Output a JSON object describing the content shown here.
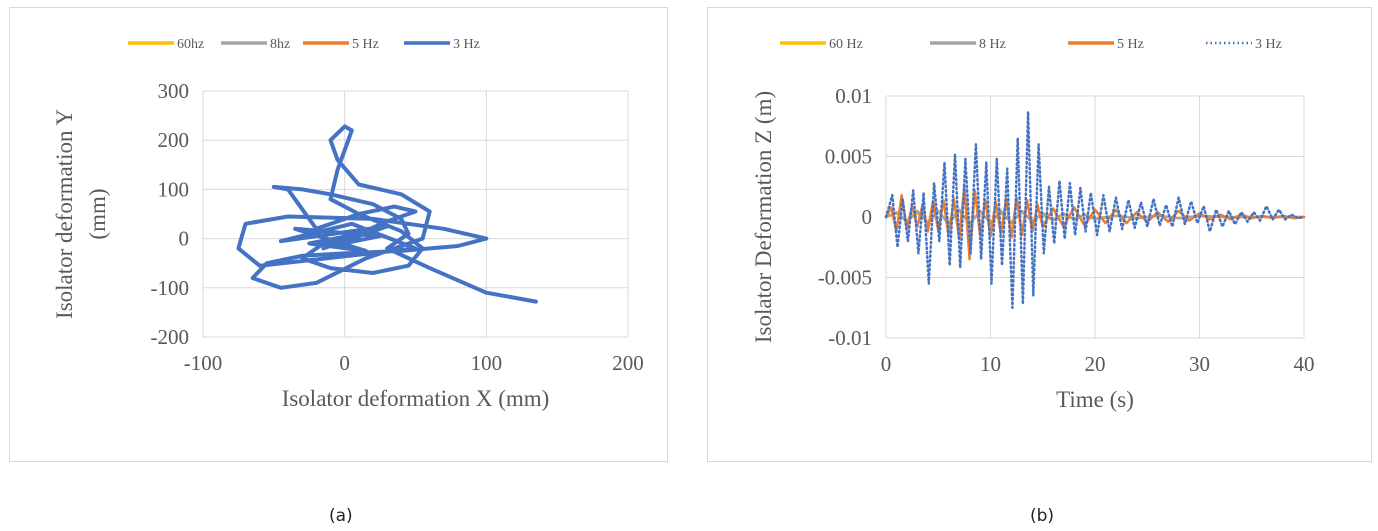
{
  "chart_data": [
    {
      "type": "line",
      "subtype": "xy-scatter-line",
      "caption": "(a)",
      "xlabel": "Isolator deformation X (mm)",
      "ylabel": "Isolator deformation Y (mm)",
      "ylabel_lines": [
        "Isolator deformation Y",
        "(mm)"
      ],
      "xlim": [
        -100,
        200
      ],
      "ylim": [
        -200,
        300
      ],
      "xticks": [
        -100,
        0,
        100,
        200
      ],
      "yticks": [
        -200,
        -100,
        0,
        100,
        200,
        300
      ],
      "xtick_labels": [
        "-100",
        "0",
        "100",
        "200"
      ],
      "ytick_labels": [
        "-200",
        "-100",
        "0",
        "100",
        "200",
        "300"
      ],
      "grid": true,
      "legend_position": "top",
      "series": [
        {
          "name": "60hz",
          "color": "#FFC000",
          "style": "solid",
          "x": [
            0,
            0
          ],
          "y": [
            0,
            0
          ]
        },
        {
          "name": "8hz",
          "color": "#A5A5A5",
          "style": "solid",
          "x": [
            0,
            0
          ],
          "y": [
            0,
            0
          ]
        },
        {
          "name": "5 Hz",
          "color": "#ED7D31",
          "style": "solid",
          "x": [
            0,
            0
          ],
          "y": [
            0,
            0
          ]
        },
        {
          "name": "3 Hz",
          "color": "#4472C4",
          "style": "solid",
          "x": [
            0,
            10,
            -15,
            20,
            -25,
            15,
            -35,
            25,
            -10,
            30,
            -45,
            5,
            50,
            -60,
            -75,
            -70,
            -40,
            20,
            70,
            100,
            80,
            40,
            0,
            -30,
            -55,
            -65,
            -45,
            -20,
            15,
            55,
            60,
            40,
            10,
            -5,
            -10,
            0,
            5,
            -5,
            -10,
            10,
            40,
            55,
            45,
            20,
            -10,
            -30,
            -15,
            10,
            30,
            50,
            35,
            10,
            -20,
            -40,
            -50,
            -30,
            -10,
            20,
            40,
            45,
            30,
            60,
            100,
            135
          ],
          "y": [
            0,
            10,
            -20,
            15,
            -10,
            -25,
            20,
            5,
            -15,
            25,
            -5,
            30,
            -20,
            -55,
            -20,
            30,
            45,
            40,
            20,
            0,
            -15,
            -25,
            -30,
            -35,
            -50,
            -80,
            -100,
            -90,
            -40,
            0,
            55,
            90,
            110,
            160,
            200,
            228,
            220,
            140,
            80,
            50,
            15,
            -20,
            -55,
            -70,
            -60,
            -40,
            -10,
            10,
            35,
            55,
            65,
            50,
            20,
            100,
            105,
            100,
            90,
            70,
            40,
            10,
            -20,
            -60,
            -110,
            -128
          ]
        }
      ]
    },
    {
      "type": "line",
      "caption": "(b)",
      "xlabel": "Time (s)",
      "ylabel": "Isolator Deformation Z (m)",
      "xlim": [
        0,
        40
      ],
      "ylim": [
        -0.01,
        0.01
      ],
      "xticks": [
        0,
        10,
        20,
        30,
        40
      ],
      "yticks": [
        -0.01,
        -0.005,
        0,
        0.005,
        0.01
      ],
      "xtick_labels": [
        "0",
        "10",
        "20",
        "30",
        "40"
      ],
      "ytick_labels": [
        "-0.01",
        "-0.005",
        "0",
        "0.005",
        "0.01"
      ],
      "grid": true,
      "legend_position": "top",
      "series": [
        {
          "name": "60 Hz",
          "color": "#FFC000",
          "style": "solid",
          "x": [
            0,
            1,
            2,
            3,
            4,
            5,
            6,
            7,
            8,
            9,
            10,
            11,
            12,
            13,
            14,
            15,
            16,
            17,
            18,
            19,
            20,
            22,
            24,
            26,
            28,
            30,
            32,
            34,
            36,
            38,
            40
          ],
          "y": [
            0,
            0.0003,
            -0.0003,
            0.0003,
            -0.0004,
            0.0004,
            -0.0004,
            0.0005,
            -0.0005,
            0.0004,
            -0.0004,
            0.0003,
            -0.0004,
            0.0004,
            -0.0003,
            0.0002,
            -0.0002,
            0.0002,
            -0.0002,
            0.0002,
            -0.0001,
            0.0001,
            -0.0001,
            0.0001,
            -0.0001,
            0.0001,
            0,
            0,
            0,
            0,
            0
          ]
        },
        {
          "name": "8 Hz",
          "color": "#A5A5A5",
          "style": "solid",
          "x": [
            0,
            1,
            2,
            3,
            4,
            5,
            6,
            7,
            8,
            9,
            10,
            11,
            12,
            13,
            14,
            15,
            16,
            17,
            18,
            19,
            20,
            22,
            24,
            26,
            28,
            30,
            32,
            34,
            36,
            38,
            40
          ],
          "y": [
            0,
            0.0004,
            -0.0004,
            0.0005,
            -0.0005,
            0.0005,
            -0.0006,
            0.0006,
            -0.0006,
            0.0005,
            -0.0005,
            0.0005,
            -0.0005,
            0.0005,
            -0.0004,
            0.0003,
            -0.0003,
            0.0003,
            -0.0002,
            0.0002,
            -0.0002,
            0.0001,
            -0.0001,
            0.0001,
            -0.0001,
            0.0001,
            0,
            0,
            0,
            0,
            0
          ]
        },
        {
          "name": "5 Hz",
          "color": "#ED7D31",
          "style": "solid",
          "x": [
            0,
            0.5,
            1,
            1.5,
            2,
            2.5,
            3,
            3.5,
            4,
            4.5,
            5,
            5.5,
            6,
            6.5,
            7,
            7.5,
            8,
            8.5,
            9,
            9.5,
            10,
            10.5,
            11,
            11.5,
            12,
            12.5,
            13,
            13.5,
            14,
            14.5,
            15,
            16,
            17,
            18,
            19,
            20,
            21,
            22,
            23,
            24,
            25,
            26,
            27,
            28,
            29,
            30,
            31,
            32,
            33,
            34,
            35,
            36,
            37,
            38,
            39,
            40
          ],
          "y": [
            0,
            0.0008,
            -0.0012,
            0.0018,
            -0.001,
            0.0009,
            -0.0008,
            0.001,
            -0.0012,
            0.0013,
            -0.0011,
            0.0014,
            -0.0016,
            0.0015,
            -0.0018,
            0.0025,
            -0.0035,
            0.0022,
            -0.0015,
            0.0014,
            -0.0016,
            0.0013,
            -0.0014,
            0.0015,
            -0.0017,
            0.0016,
            -0.0015,
            0.0014,
            -0.0012,
            0.001,
            -0.0008,
            0.0007,
            -0.0008,
            0.0008,
            -0.0007,
            0.0006,
            -0.0005,
            0.0006,
            -0.0005,
            0.0004,
            -0.0004,
            0.0004,
            -0.0004,
            0.0005,
            -0.0003,
            0.0003,
            -0.0002,
            0.0002,
            -0.0002,
            0.0002,
            -0.0001,
            0.0001,
            -0.0001,
            0.0001,
            -0.0001,
            0
          ]
        },
        {
          "name": "3 Hz",
          "color": "#4472C4",
          "style": "dotted",
          "x": [
            0,
            0.6,
            1.1,
            1.6,
            2.1,
            2.6,
            3.1,
            3.6,
            4.1,
            4.6,
            5.1,
            5.6,
            6.1,
            6.6,
            7.1,
            7.6,
            8.1,
            8.6,
            9.1,
            9.6,
            10.1,
            10.6,
            11.1,
            11.6,
            12.1,
            12.6,
            13.1,
            13.6,
            14.1,
            14.6,
            15.1,
            15.6,
            16.1,
            16.6,
            17.1,
            17.6,
            18.1,
            18.6,
            19.1,
            19.6,
            20.2,
            20.8,
            21.4,
            22.0,
            22.6,
            23.2,
            23.8,
            24.4,
            25.0,
            25.6,
            26.2,
            26.8,
            27.4,
            28.0,
            28.6,
            29.2,
            29.8,
            30.4,
            31.0,
            31.6,
            32.2,
            32.8,
            33.4,
            34.0,
            34.6,
            35.2,
            35.8,
            36.4,
            37.0,
            37.6,
            38.2,
            38.8,
            39.4,
            40
          ],
          "y": [
            0,
            0.0018,
            -0.0025,
            0.0015,
            -0.002,
            0.0022,
            -0.003,
            0.002,
            -0.0055,
            0.0028,
            -0.002,
            0.0045,
            -0.004,
            0.0052,
            -0.0042,
            0.0048,
            -0.003,
            0.006,
            -0.0035,
            0.0045,
            -0.0055,
            0.0048,
            -0.004,
            0.004,
            -0.0075,
            0.0065,
            -0.0072,
            0.0087,
            -0.0065,
            0.006,
            -0.003,
            0.0025,
            -0.0022,
            0.003,
            -0.0018,
            0.0028,
            -0.0015,
            0.0024,
            -0.0012,
            0.002,
            -0.0015,
            0.0018,
            -0.0012,
            0.0016,
            -0.001,
            0.0014,
            -0.0009,
            0.0012,
            -0.0008,
            0.0015,
            -0.0007,
            0.001,
            -0.0008,
            0.0016,
            -0.0006,
            0.0013,
            -0.0005,
            0.0009,
            -0.0012,
            0.0006,
            -0.0008,
            0.0005,
            -0.0006,
            0.0004,
            -0.0004,
            0.0004,
            -0.0003,
            0.0009,
            -0.0002,
            0.0006,
            -0.0002,
            0.0002,
            -0.0001,
            0
          ]
        }
      ]
    }
  ]
}
